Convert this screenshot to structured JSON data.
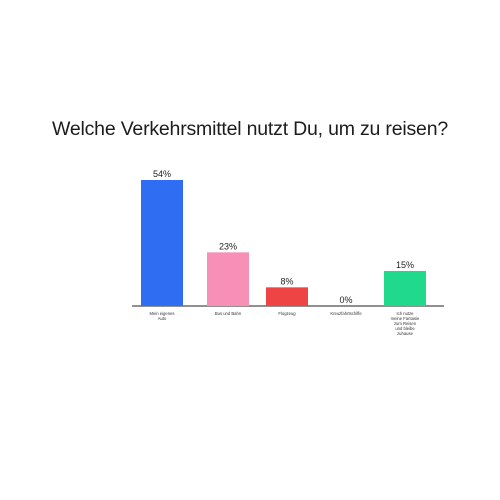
{
  "page": {
    "title": "Welche Verkehrsmittel nutzt Du, um zu reisen?"
  },
  "chart_data": {
    "type": "bar",
    "title": "Welche Verkehrsmittel nutzt Du, um zu reisen?",
    "categories": [
      "Mein eigenes Auto",
      "Bus und Bahn",
      "Flugzeug",
      "Kreuzfahrtschiffe",
      "Ich nutze meine Fantasie zum Reisen und bleibe zuhause"
    ],
    "values": [
      54,
      23,
      8,
      0,
      15
    ],
    "value_labels": [
      "54%",
      "23%",
      "8%",
      "0%",
      "15%"
    ],
    "colors": [
      "#2f6df2",
      "#f78fb6",
      "#ef4444",
      "#9e9e9e",
      "#21d98c"
    ],
    "ylim": [
      0,
      54
    ],
    "grid": false,
    "legend": "none",
    "xlabel": "",
    "ylabel": ""
  }
}
